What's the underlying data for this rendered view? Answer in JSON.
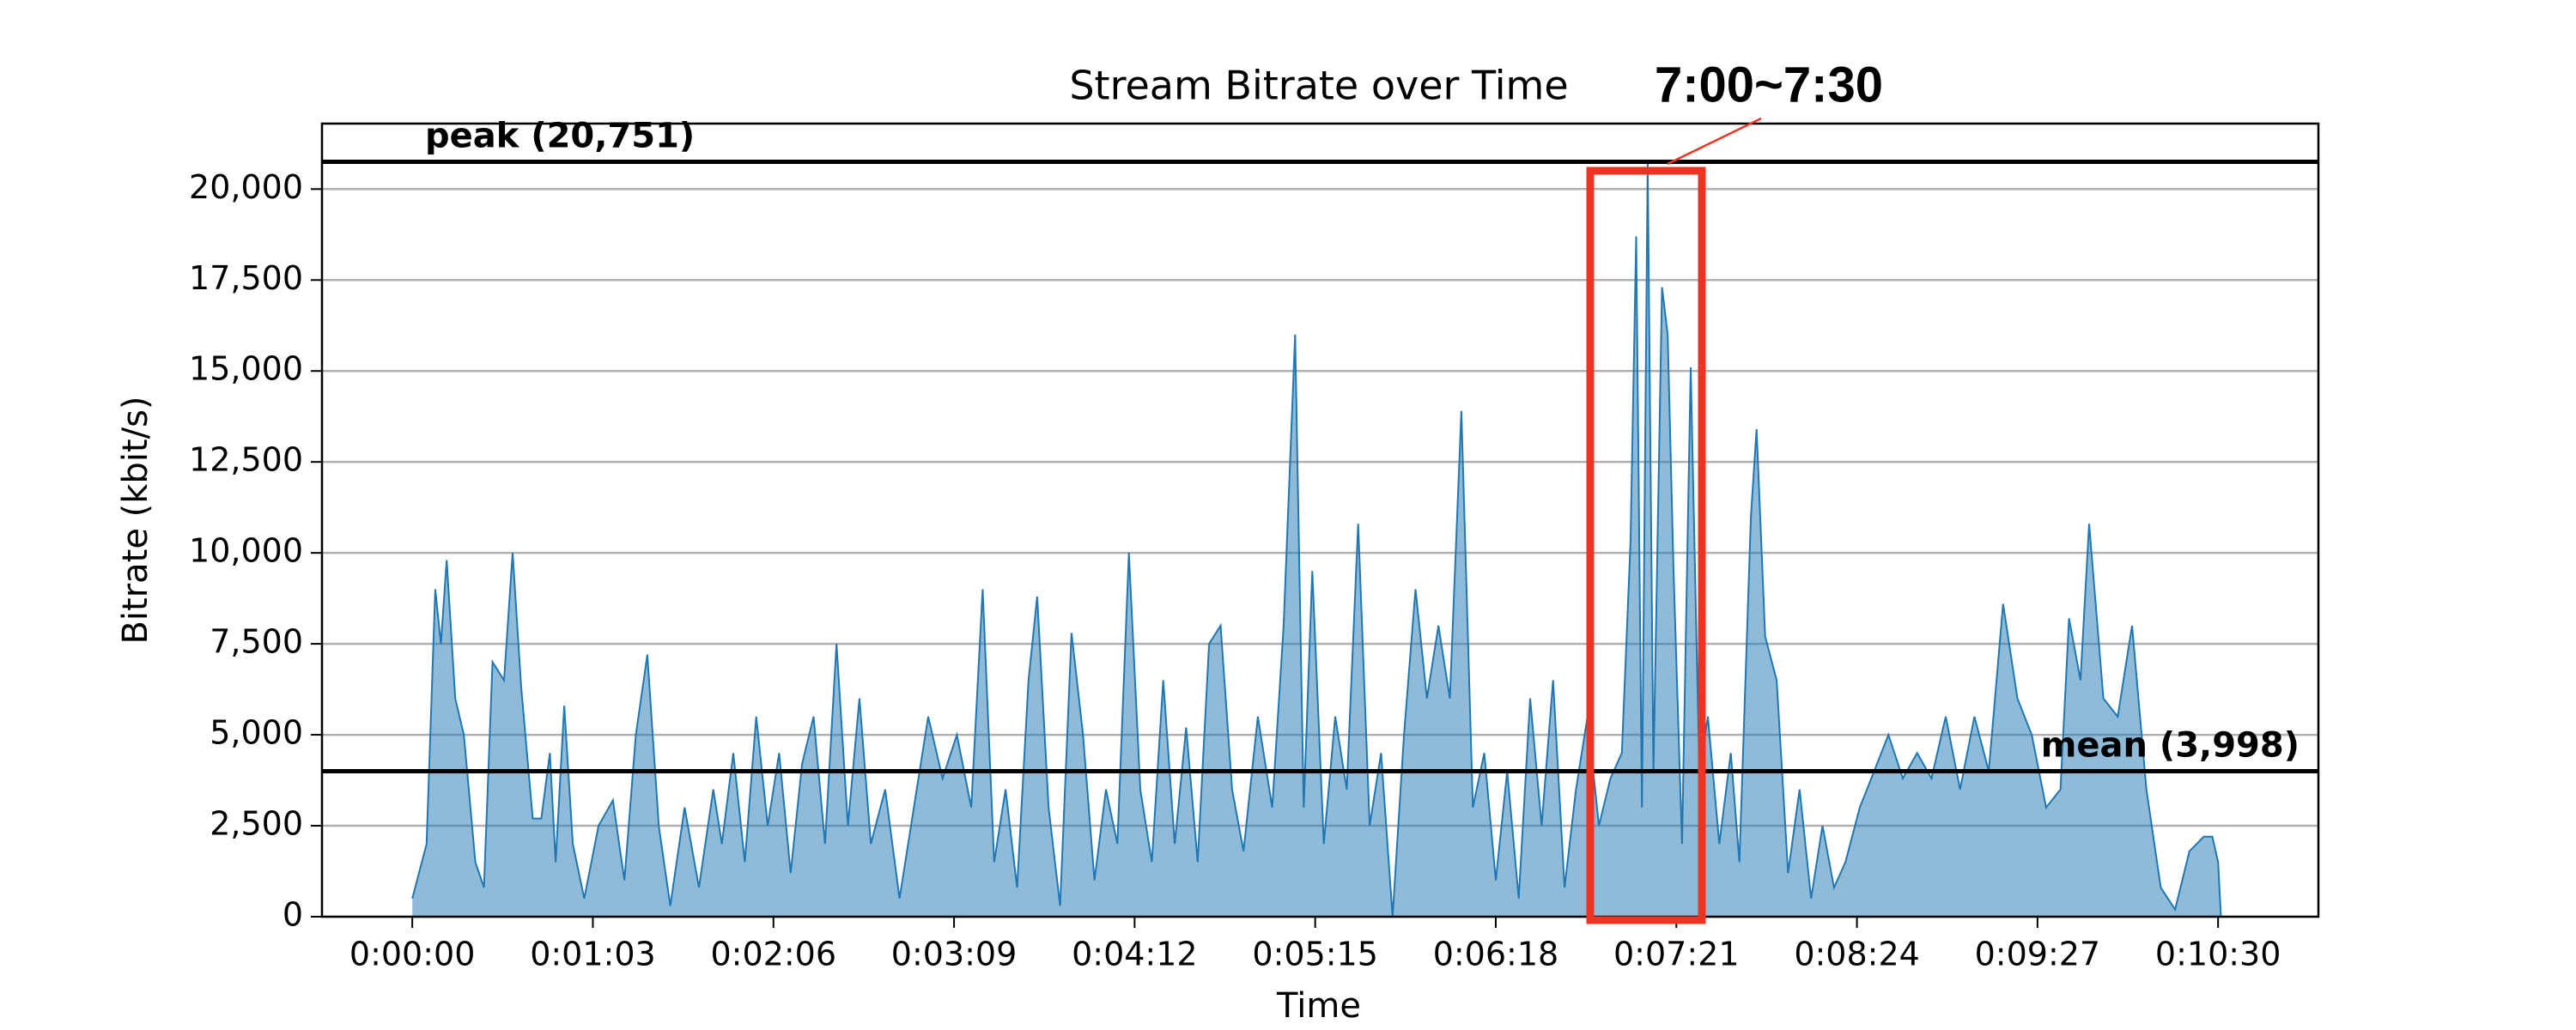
{
  "chart_data": {
    "type": "area",
    "title": "Stream Bitrate over Time",
    "xlabel": "Time",
    "ylabel": "Bitrate (kbit/s)",
    "color": "#1f77b4",
    "grid": true,
    "x": [
      0,
      5,
      8,
      10,
      12,
      15,
      18,
      22,
      25,
      28,
      32,
      35,
      38,
      42,
      45,
      48,
      50,
      53,
      56,
      60,
      65,
      70,
      74,
      78,
      82,
      86,
      90,
      95,
      100,
      105,
      108,
      112,
      116,
      120,
      124,
      128,
      132,
      136,
      140,
      144,
      148,
      152,
      156,
      160,
      165,
      170,
      175,
      180,
      185,
      190,
      195,
      199,
      203,
      207,
      211,
      215,
      218,
      222,
      226,
      230,
      234,
      238,
      242,
      246,
      250,
      254,
      258,
      262,
      266,
      270,
      274,
      278,
      282,
      286,
      290,
      295,
      300,
      304,
      308,
      311,
      314,
      318,
      322,
      326,
      330,
      334,
      338,
      342,
      346,
      350,
      354,
      358,
      362,
      366,
      370,
      374,
      378,
      382,
      386,
      390,
      394,
      398,
      402,
      406,
      410,
      414,
      418,
      422,
      425,
      427,
      429,
      431,
      433,
      436,
      438,
      440,
      443,
      446,
      449,
      452,
      456,
      460,
      463,
      467,
      469,
      472,
      476,
      480,
      484,
      488,
      492,
      496,
      500,
      505,
      510,
      515,
      520,
      525,
      530,
      535,
      540,
      545,
      550,
      555,
      560,
      565,
      570,
      575,
      578,
      582,
      585,
      590,
      595,
      600,
      605,
      610,
      615,
      620,
      625,
      628,
      630,
      631
    ],
    "values": [
      500,
      2000,
      9000,
      7500,
      9800,
      6000,
      5000,
      1500,
      800,
      7000,
      6500,
      10000,
      6300,
      2700,
      2700,
      4500,
      1500,
      5800,
      2000,
      500,
      2500,
      3200,
      1000,
      5000,
      7200,
      2500,
      300,
      3000,
      800,
      3500,
      2000,
      4500,
      1500,
      5500,
      2500,
      4500,
      1200,
      4200,
      5500,
      2000,
      7500,
      2500,
      6000,
      2000,
      3500,
      500,
      3000,
      5500,
      3800,
      5000,
      3000,
      9000,
      1500,
      3500,
      800,
      6500,
      8800,
      3000,
      300,
      7800,
      5000,
      1000,
      3500,
      2000,
      10000,
      3500,
      1500,
      6500,
      2000,
      5200,
      1500,
      7500,
      8000,
      3500,
      1800,
      5500,
      3000,
      8000,
      16000,
      3000,
      9500,
      2000,
      5500,
      3500,
      10800,
      2500,
      4500,
      0,
      5000,
      9000,
      6000,
      8000,
      6000,
      13900,
      3000,
      4500,
      1000,
      4000,
      500,
      6000,
      2500,
      6500,
      800,
      3500,
      5500,
      2500,
      3800,
      4500,
      10300,
      18700,
      3000,
      20751,
      4000,
      17300,
      16000,
      9600,
      2000,
      15100,
      4000,
      5500,
      2000,
      4500,
      1500,
      11000,
      13400,
      7700,
      6500,
      1200,
      3500,
      500,
      2500,
      800,
      1500,
      3000,
      4000,
      5000,
      3800,
      4500,
      3800,
      5500,
      3500,
      5500,
      4000,
      8600,
      6000,
      5000,
      3000,
      3500,
      8200,
      6500,
      10800,
      6000,
      5500,
      8000,
      3500,
      800,
      200,
      1800,
      2200,
      2200,
      1500,
      0
    ],
    "xlim": [
      -31.5,
      665
    ],
    "xticks": [
      {
        "value": 0,
        "label": "0:00:00"
      },
      {
        "value": 63,
        "label": "0:01:03"
      },
      {
        "value": 126,
        "label": "0:02:06"
      },
      {
        "value": 189,
        "label": "0:03:09"
      },
      {
        "value": 252,
        "label": "0:04:12"
      },
      {
        "value": 315,
        "label": "0:05:15"
      },
      {
        "value": 378,
        "label": "0:06:18"
      },
      {
        "value": 441,
        "label": "0:07:21"
      },
      {
        "value": 504,
        "label": "0:08:24"
      },
      {
        "value": 567,
        "label": "0:09:27"
      },
      {
        "value": 630,
        "label": "0:10:30"
      }
    ],
    "ylim": [
      0,
      21800
    ],
    "yticks": [
      0,
      {
        "value": 2500,
        "label": "2,500"
      },
      {
        "value": 5000,
        "label": "5,000"
      },
      {
        "value": 7500,
        "label": "7,500"
      },
      {
        "value": 10000,
        "label": "10,000"
      },
      {
        "value": 12500,
        "label": "12,500"
      },
      {
        "value": 15000,
        "label": "15,000"
      },
      {
        "value": 17500,
        "label": "17,500"
      },
      {
        "value": 20000,
        "label": "20,000"
      }
    ],
    "reference_lines": [
      {
        "value": 20751,
        "label": "peak (20,751)",
        "color": "#000000"
      },
      {
        "value": 3998,
        "label": "mean (3,998)",
        "color": "#000000"
      }
    ],
    "annotation": {
      "text": "7:00~7:30",
      "color": "#ee3322"
    }
  }
}
